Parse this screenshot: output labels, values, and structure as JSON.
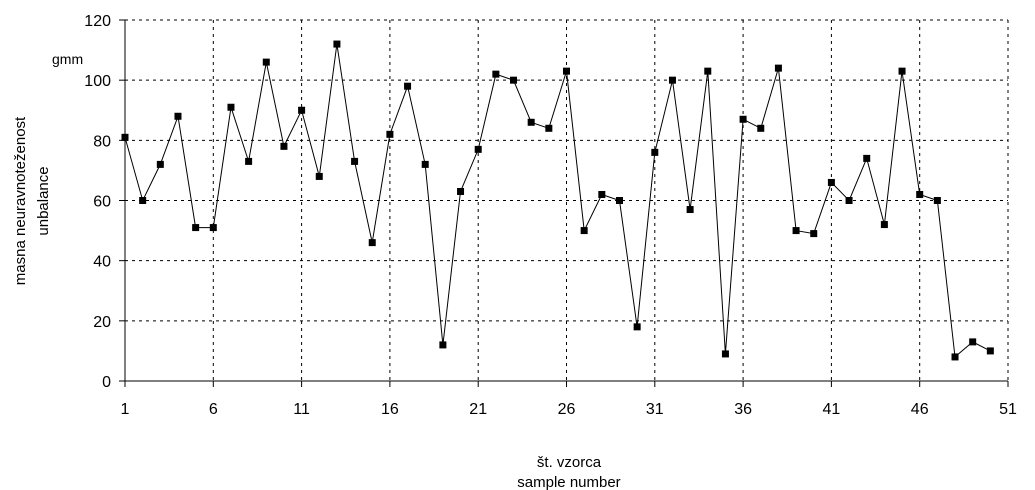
{
  "chart_data": {
    "type": "line",
    "ylabel_line1": "masna neuravnoteženost",
    "ylabel_line2": "unbalance",
    "xlabel_line1": "št. vzorca",
    "xlabel_line2": "sample number",
    "unit_label": "gmm",
    "ylim": [
      0,
      120
    ],
    "y_ticks": [
      0,
      20,
      40,
      60,
      80,
      100,
      120
    ],
    "xlim": [
      1,
      51
    ],
    "x_ticks": [
      1,
      6,
      11,
      16,
      21,
      26,
      31,
      36,
      41,
      46,
      51
    ],
    "grid": true,
    "marker": "square",
    "line_color": "#000000",
    "series": [
      {
        "x": [
          1,
          2,
          3,
          4,
          5,
          6,
          7,
          8,
          9,
          10,
          11,
          12,
          13,
          14,
          15,
          16,
          17,
          18,
          19,
          20,
          21,
          22,
          23,
          24,
          25,
          26,
          27,
          28,
          29,
          30,
          31,
          32,
          33,
          34,
          35,
          36,
          37,
          38,
          39,
          40,
          41,
          42,
          43,
          44,
          45,
          46,
          47,
          48,
          49,
          50
        ],
        "values": [
          81,
          60,
          72,
          88,
          51,
          51,
          91,
          73,
          106,
          78,
          90,
          68,
          112,
          73,
          46,
          82,
          98,
          72,
          12,
          63,
          77,
          102,
          100,
          86,
          84,
          103,
          50,
          62,
          60,
          18,
          76,
          100,
          57,
          103,
          9,
          87,
          84,
          104,
          50,
          49,
          66,
          60,
          74,
          52,
          103,
          62,
          60,
          8,
          13,
          10
        ]
      }
    ]
  }
}
